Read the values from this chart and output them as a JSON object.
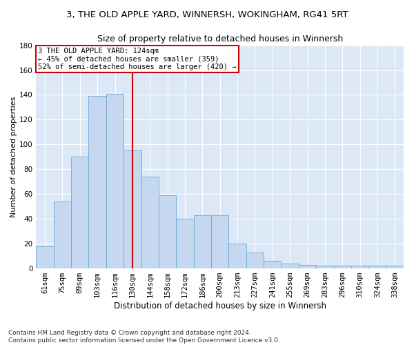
{
  "title1": "3, THE OLD APPLE YARD, WINNERSH, WOKINGHAM, RG41 5RT",
  "title2": "Size of property relative to detached houses in Winnersh",
  "xlabel": "Distribution of detached houses by size in Winnersh",
  "ylabel": "Number of detached properties",
  "categories": [
    "61sqm",
    "75sqm",
    "89sqm",
    "103sqm",
    "116sqm",
    "130sqm",
    "144sqm",
    "158sqm",
    "172sqm",
    "186sqm",
    "200sqm",
    "213sqm",
    "227sqm",
    "241sqm",
    "255sqm",
    "269sqm",
    "283sqm",
    "296sqm",
    "310sqm",
    "324sqm",
    "338sqm"
  ],
  "values": [
    18,
    54,
    90,
    139,
    141,
    95,
    74,
    59,
    40,
    43,
    43,
    20,
    13,
    6,
    4,
    3,
    2,
    2,
    2,
    2,
    2
  ],
  "bar_color": "#c5d8ef",
  "bar_edgecolor": "#6aaad4",
  "vline_color": "#cc0000",
  "annotation_text": "3 THE OLD APPLE YARD: 124sqm\n← 45% of detached houses are smaller (359)\n52% of semi-detached houses are larger (420) →",
  "annotation_box_color": "#ffffff",
  "annotation_box_edgecolor": "#cc0000",
  "ylim": [
    0,
    180
  ],
  "yticks": [
    0,
    20,
    40,
    60,
    80,
    100,
    120,
    140,
    160,
    180
  ],
  "background_color": "#dce8f5",
  "grid_color": "#ffffff",
  "fig_bg": "#ffffff",
  "footer1": "Contains HM Land Registry data © Crown copyright and database right 2024.",
  "footer2": "Contains public sector information licensed under the Open Government Licence v3.0.",
  "title1_fontsize": 9.5,
  "title2_fontsize": 9,
  "xlabel_fontsize": 8.5,
  "ylabel_fontsize": 8,
  "tick_fontsize": 7.5,
  "annotation_fontsize": 7.5,
  "footer_fontsize": 6.5
}
